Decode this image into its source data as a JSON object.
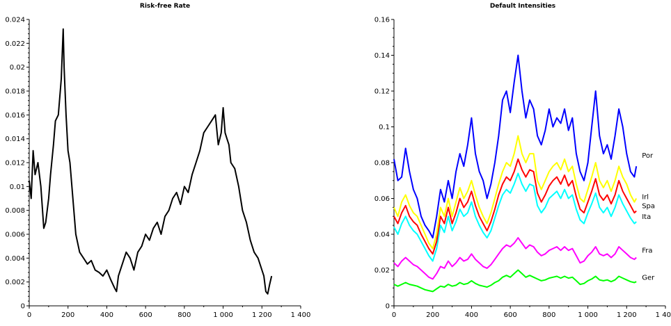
{
  "chart_data": [
    {
      "type": "line",
      "title": "Risk-free Rate",
      "xlabel": "",
      "ylabel": "",
      "xlim": [
        0,
        1400
      ],
      "ylim": [
        0,
        0.024
      ],
      "xticks": [
        0,
        200,
        400,
        600,
        800,
        1000,
        1200,
        1400
      ],
      "xtick_labels": [
        "0",
        "200",
        "400",
        "600",
        "800",
        "1 000",
        "1 200",
        "1 400"
      ],
      "yticks": [
        0,
        0.002,
        0.004,
        0.006,
        0.008,
        0.01,
        0.012,
        0.014,
        0.016,
        0.018,
        0.02,
        0.022,
        0.024
      ],
      "ytick_labels": [
        "0",
        "0.002",
        "0.004",
        "0.006",
        "0.008",
        "0.01",
        "0.012",
        "0.014",
        "0.016",
        "0.018",
        "0.02",
        "0.022",
        "0.024"
      ],
      "grid": false,
      "legend": "none",
      "series": [
        {
          "color": "#000000",
          "x": [
            0,
            10,
            20,
            30,
            45,
            60,
            75,
            85,
            100,
            110,
            125,
            135,
            150,
            165,
            175,
            180,
            190,
            200,
            210,
            225,
            240,
            260,
            280,
            300,
            320,
            340,
            360,
            380,
            400,
            420,
            440,
            450,
            460,
            480,
            500,
            520,
            540,
            560,
            580,
            600,
            620,
            640,
            660,
            680,
            700,
            720,
            740,
            760,
            780,
            800,
            820,
            840,
            860,
            880,
            900,
            920,
            940,
            960,
            975,
            990,
            1000,
            1010,
            1020,
            1030,
            1040,
            1060,
            1080,
            1100,
            1120,
            1140,
            1160,
            1180,
            1200,
            1210,
            1220,
            1230,
            1240,
            1250
          ],
          "y": [
            0.0105,
            0.009,
            0.013,
            0.011,
            0.012,
            0.01,
            0.0065,
            0.007,
            0.009,
            0.011,
            0.0135,
            0.0155,
            0.016,
            0.019,
            0.0232,
            0.02,
            0.016,
            0.013,
            0.012,
            0.009,
            0.006,
            0.0045,
            0.004,
            0.0035,
            0.0038,
            0.003,
            0.0028,
            0.0025,
            0.003,
            0.0022,
            0.0015,
            0.0012,
            0.0025,
            0.0035,
            0.0045,
            0.004,
            0.003,
            0.0045,
            0.005,
            0.006,
            0.0055,
            0.0065,
            0.007,
            0.006,
            0.0075,
            0.008,
            0.009,
            0.0095,
            0.0085,
            0.01,
            0.0095,
            0.011,
            0.012,
            0.013,
            0.0145,
            0.015,
            0.0155,
            0.016,
            0.0135,
            0.0145,
            0.0166,
            0.0145,
            0.014,
            0.0135,
            0.012,
            0.0115,
            0.01,
            0.008,
            0.007,
            0.0055,
            0.0045,
            0.004,
            0.003,
            0.0025,
            0.0012,
            0.001,
            0.0018,
            0.0025
          ]
        }
      ]
    },
    {
      "type": "line",
      "title": "Default Intensities",
      "xlabel": "",
      "ylabel": "",
      "xlim": [
        0,
        1400
      ],
      "ylim": [
        0,
        0.16
      ],
      "xticks": [
        0,
        200,
        400,
        600,
        800,
        1000,
        1200,
        1400
      ],
      "xtick_labels": [
        "0",
        "200",
        "400",
        "600",
        "800",
        "1 000",
        "1 200",
        "1 400"
      ],
      "yticks": [
        0,
        0.02,
        0.04,
        0.06,
        0.08,
        0.1,
        0.12,
        0.14,
        0.16
      ],
      "ytick_labels": [
        "0",
        "0.02",
        "0.04",
        "0.06",
        "0.08",
        "0.1",
        "0.12",
        "0.14",
        "0.16"
      ],
      "grid": false,
      "legend": "inline labels at right end of lines",
      "series": [
        {
          "name": "Por",
          "color": "#0000ff",
          "x": [
            0,
            20,
            40,
            60,
            80,
            100,
            120,
            140,
            160,
            180,
            200,
            220,
            240,
            260,
            280,
            300,
            320,
            340,
            360,
            380,
            400,
            420,
            440,
            460,
            480,
            500,
            520,
            540,
            560,
            580,
            600,
            620,
            640,
            660,
            680,
            700,
            720,
            740,
            760,
            780,
            800,
            820,
            840,
            860,
            880,
            900,
            920,
            940,
            960,
            980,
            1000,
            1020,
            1040,
            1060,
            1080,
            1100,
            1120,
            1140,
            1160,
            1180,
            1200,
            1220,
            1240,
            1250
          ],
          "y": [
            0.082,
            0.07,
            0.072,
            0.088,
            0.075,
            0.065,
            0.06,
            0.05,
            0.045,
            0.042,
            0.038,
            0.05,
            0.065,
            0.058,
            0.07,
            0.06,
            0.075,
            0.085,
            0.078,
            0.09,
            0.105,
            0.085,
            0.075,
            0.07,
            0.06,
            0.068,
            0.08,
            0.095,
            0.115,
            0.12,
            0.108,
            0.125,
            0.14,
            0.12,
            0.105,
            0.115,
            0.11,
            0.095,
            0.09,
            0.098,
            0.11,
            0.1,
            0.105,
            0.102,
            0.11,
            0.098,
            0.105,
            0.085,
            0.075,
            0.07,
            0.08,
            0.1,
            0.12,
            0.095,
            0.085,
            0.09,
            0.082,
            0.095,
            0.11,
            0.1,
            0.085,
            0.075,
            0.072,
            0.078
          ]
        },
        {
          "name": "Irl",
          "color": "#ffff00",
          "x": [
            0,
            20,
            40,
            60,
            80,
            100,
            120,
            140,
            160,
            180,
            200,
            220,
            240,
            260,
            280,
            300,
            320,
            340,
            360,
            380,
            400,
            420,
            440,
            460,
            480,
            500,
            520,
            540,
            560,
            580,
            600,
            620,
            640,
            660,
            680,
            700,
            720,
            740,
            760,
            780,
            800,
            820,
            840,
            860,
            880,
            900,
            920,
            940,
            960,
            980,
            1000,
            1020,
            1040,
            1060,
            1080,
            1100,
            1120,
            1140,
            1160,
            1180,
            1200,
            1220,
            1240,
            1250
          ],
          "y": [
            0.055,
            0.05,
            0.058,
            0.062,
            0.056,
            0.052,
            0.05,
            0.045,
            0.04,
            0.035,
            0.032,
            0.04,
            0.055,
            0.05,
            0.06,
            0.05,
            0.058,
            0.066,
            0.06,
            0.064,
            0.07,
            0.062,
            0.055,
            0.05,
            0.046,
            0.052,
            0.06,
            0.068,
            0.075,
            0.08,
            0.078,
            0.085,
            0.095,
            0.085,
            0.08,
            0.085,
            0.085,
            0.07,
            0.065,
            0.07,
            0.075,
            0.078,
            0.08,
            0.076,
            0.082,
            0.075,
            0.078,
            0.068,
            0.06,
            0.058,
            0.065,
            0.072,
            0.08,
            0.07,
            0.066,
            0.07,
            0.064,
            0.07,
            0.078,
            0.072,
            0.068,
            0.062,
            0.058,
            0.06
          ]
        },
        {
          "name": "Spa",
          "color": "#ff0000",
          "x": [
            0,
            20,
            40,
            60,
            80,
            100,
            120,
            140,
            160,
            180,
            200,
            220,
            240,
            260,
            280,
            300,
            320,
            340,
            360,
            380,
            400,
            420,
            440,
            460,
            480,
            500,
            520,
            540,
            560,
            580,
            600,
            620,
            640,
            660,
            680,
            700,
            720,
            740,
            760,
            780,
            800,
            820,
            840,
            860,
            880,
            900,
            920,
            940,
            960,
            980,
            1000,
            1020,
            1040,
            1060,
            1080,
            1100,
            1120,
            1140,
            1160,
            1180,
            1200,
            1220,
            1240,
            1250
          ],
          "y": [
            0.05,
            0.046,
            0.052,
            0.056,
            0.05,
            0.047,
            0.045,
            0.04,
            0.036,
            0.032,
            0.029,
            0.036,
            0.05,
            0.046,
            0.055,
            0.046,
            0.052,
            0.06,
            0.055,
            0.058,
            0.064,
            0.056,
            0.05,
            0.046,
            0.042,
            0.047,
            0.054,
            0.062,
            0.068,
            0.072,
            0.07,
            0.075,
            0.082,
            0.076,
            0.072,
            0.076,
            0.075,
            0.063,
            0.058,
            0.062,
            0.067,
            0.07,
            0.072,
            0.068,
            0.073,
            0.067,
            0.07,
            0.061,
            0.054,
            0.052,
            0.058,
            0.064,
            0.071,
            0.062,
            0.059,
            0.062,
            0.057,
            0.062,
            0.07,
            0.064,
            0.06,
            0.056,
            0.052,
            0.053
          ]
        },
        {
          "name": "Ita",
          "color": "#00ffff",
          "x": [
            0,
            20,
            40,
            60,
            80,
            100,
            120,
            140,
            160,
            180,
            200,
            220,
            240,
            260,
            280,
            300,
            320,
            340,
            360,
            380,
            400,
            420,
            440,
            460,
            480,
            500,
            520,
            540,
            560,
            580,
            600,
            620,
            640,
            660,
            680,
            700,
            720,
            740,
            760,
            780,
            800,
            820,
            840,
            860,
            880,
            900,
            920,
            940,
            960,
            980,
            1000,
            1020,
            1040,
            1060,
            1080,
            1100,
            1120,
            1140,
            1160,
            1180,
            1200,
            1220,
            1240,
            1250
          ],
          "y": [
            0.044,
            0.04,
            0.046,
            0.05,
            0.045,
            0.042,
            0.04,
            0.036,
            0.032,
            0.028,
            0.025,
            0.032,
            0.045,
            0.041,
            0.05,
            0.042,
            0.047,
            0.054,
            0.05,
            0.052,
            0.058,
            0.05,
            0.045,
            0.041,
            0.038,
            0.042,
            0.049,
            0.056,
            0.062,
            0.065,
            0.063,
            0.068,
            0.074,
            0.068,
            0.064,
            0.068,
            0.067,
            0.056,
            0.052,
            0.055,
            0.06,
            0.062,
            0.064,
            0.06,
            0.065,
            0.06,
            0.062,
            0.054,
            0.048,
            0.046,
            0.052,
            0.057,
            0.063,
            0.055,
            0.052,
            0.055,
            0.05,
            0.055,
            0.062,
            0.057,
            0.053,
            0.049,
            0.046,
            0.047
          ]
        },
        {
          "name": "Fra",
          "color": "#ff00ff",
          "x": [
            0,
            20,
            40,
            60,
            80,
            100,
            120,
            140,
            160,
            180,
            200,
            220,
            240,
            260,
            280,
            300,
            320,
            340,
            360,
            380,
            400,
            420,
            440,
            460,
            480,
            500,
            520,
            540,
            560,
            580,
            600,
            620,
            640,
            660,
            680,
            700,
            720,
            740,
            760,
            780,
            800,
            820,
            840,
            860,
            880,
            900,
            920,
            940,
            960,
            980,
            1000,
            1020,
            1040,
            1060,
            1080,
            1100,
            1120,
            1140,
            1160,
            1180,
            1200,
            1220,
            1240,
            1250
          ],
          "y": [
            0.024,
            0.022,
            0.025,
            0.027,
            0.025,
            0.023,
            0.022,
            0.02,
            0.018,
            0.016,
            0.015,
            0.018,
            0.022,
            0.021,
            0.025,
            0.022,
            0.024,
            0.027,
            0.025,
            0.026,
            0.029,
            0.026,
            0.024,
            0.022,
            0.021,
            0.023,
            0.026,
            0.029,
            0.032,
            0.034,
            0.033,
            0.035,
            0.038,
            0.035,
            0.032,
            0.034,
            0.033,
            0.03,
            0.028,
            0.029,
            0.031,
            0.032,
            0.033,
            0.031,
            0.033,
            0.031,
            0.032,
            0.028,
            0.024,
            0.025,
            0.028,
            0.03,
            0.033,
            0.029,
            0.028,
            0.029,
            0.027,
            0.029,
            0.033,
            0.031,
            0.029,
            0.027,
            0.026,
            0.027
          ]
        },
        {
          "name": "Ger",
          "color": "#00ff00",
          "x": [
            0,
            20,
            40,
            60,
            80,
            100,
            120,
            140,
            160,
            180,
            200,
            220,
            240,
            260,
            280,
            300,
            320,
            340,
            360,
            380,
            400,
            420,
            440,
            460,
            480,
            500,
            520,
            540,
            560,
            580,
            600,
            620,
            640,
            660,
            680,
            700,
            720,
            740,
            760,
            780,
            800,
            820,
            840,
            860,
            880,
            900,
            920,
            940,
            960,
            980,
            1000,
            1020,
            1040,
            1060,
            1080,
            1100,
            1120,
            1140,
            1160,
            1180,
            1200,
            1220,
            1240,
            1250
          ],
          "y": [
            0.012,
            0.011,
            0.012,
            0.013,
            0.012,
            0.0115,
            0.011,
            0.01,
            0.009,
            0.0085,
            0.008,
            0.0095,
            0.011,
            0.0105,
            0.012,
            0.011,
            0.0115,
            0.013,
            0.012,
            0.0125,
            0.014,
            0.0125,
            0.0115,
            0.011,
            0.0105,
            0.0115,
            0.013,
            0.014,
            0.016,
            0.017,
            0.016,
            0.018,
            0.02,
            0.018,
            0.016,
            0.017,
            0.016,
            0.015,
            0.014,
            0.0145,
            0.0155,
            0.016,
            0.0165,
            0.0155,
            0.0165,
            0.0155,
            0.016,
            0.014,
            0.012,
            0.0125,
            0.014,
            0.015,
            0.0165,
            0.0145,
            0.014,
            0.0145,
            0.0135,
            0.0145,
            0.0165,
            0.0155,
            0.0145,
            0.0135,
            0.013,
            0.0135
          ]
        }
      ]
    }
  ]
}
